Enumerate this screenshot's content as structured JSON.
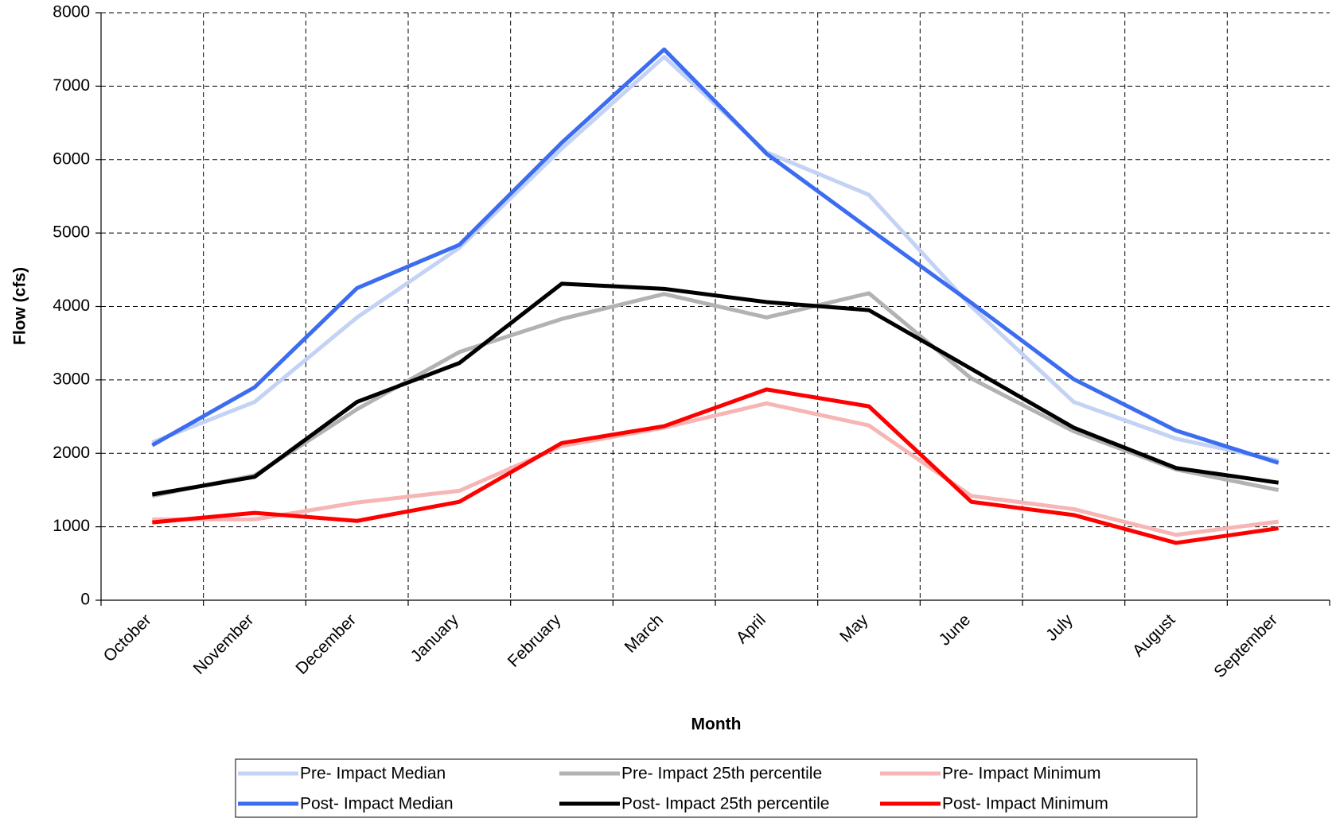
{
  "chart_data": {
    "type": "line",
    "x_label": "Month",
    "y_label": "Flow (cfs)",
    "categories": [
      "October",
      "November",
      "December",
      "January",
      "February",
      "March",
      "April",
      "May",
      "June",
      "July",
      "August",
      "September"
    ],
    "series": [
      {
        "name": "Pre- Impact Median",
        "color": "#c3d2f5",
        "values": [
          2150,
          2700,
          3850,
          4800,
          6150,
          7400,
          6100,
          5520,
          4000,
          2700,
          2200,
          1900
        ]
      },
      {
        "name": "Post- Impact Median",
        "color": "#3c6cf0",
        "values": [
          2110,
          2900,
          4250,
          4840,
          6230,
          7500,
          6080,
          5060,
          4050,
          3010,
          2310,
          1870
        ]
      },
      {
        "name": "Pre- Impact 25th percentile",
        "color": "#b2b2b2",
        "values": [
          1420,
          1700,
          2600,
          3380,
          3830,
          4170,
          3850,
          4180,
          3020,
          2300,
          1780,
          1500
        ]
      },
      {
        "name": "Post- Impact 25th percentile",
        "color": "#000000",
        "values": [
          1440,
          1680,
          2700,
          3230,
          4310,
          4240,
          4060,
          3950,
          3150,
          2350,
          1800,
          1600
        ]
      },
      {
        "name": "Pre- Impact Minimum",
        "color": "#f7b5b5",
        "values": [
          1100,
          1100,
          1330,
          1490,
          2100,
          2350,
          2680,
          2380,
          1420,
          1240,
          890,
          1070
        ]
      },
      {
        "name": "Post- Impact Minimum",
        "color": "#ff0000",
        "values": [
          1060,
          1190,
          1080,
          1340,
          2140,
          2370,
          2870,
          2640,
          1340,
          1160,
          780,
          980
        ]
      }
    ],
    "ylim": [
      0,
      8000
    ],
    "yticks": [
      0,
      1000,
      2000,
      3000,
      4000,
      5000,
      6000,
      7000,
      8000
    ],
    "grid": true,
    "legend": "bottom"
  }
}
